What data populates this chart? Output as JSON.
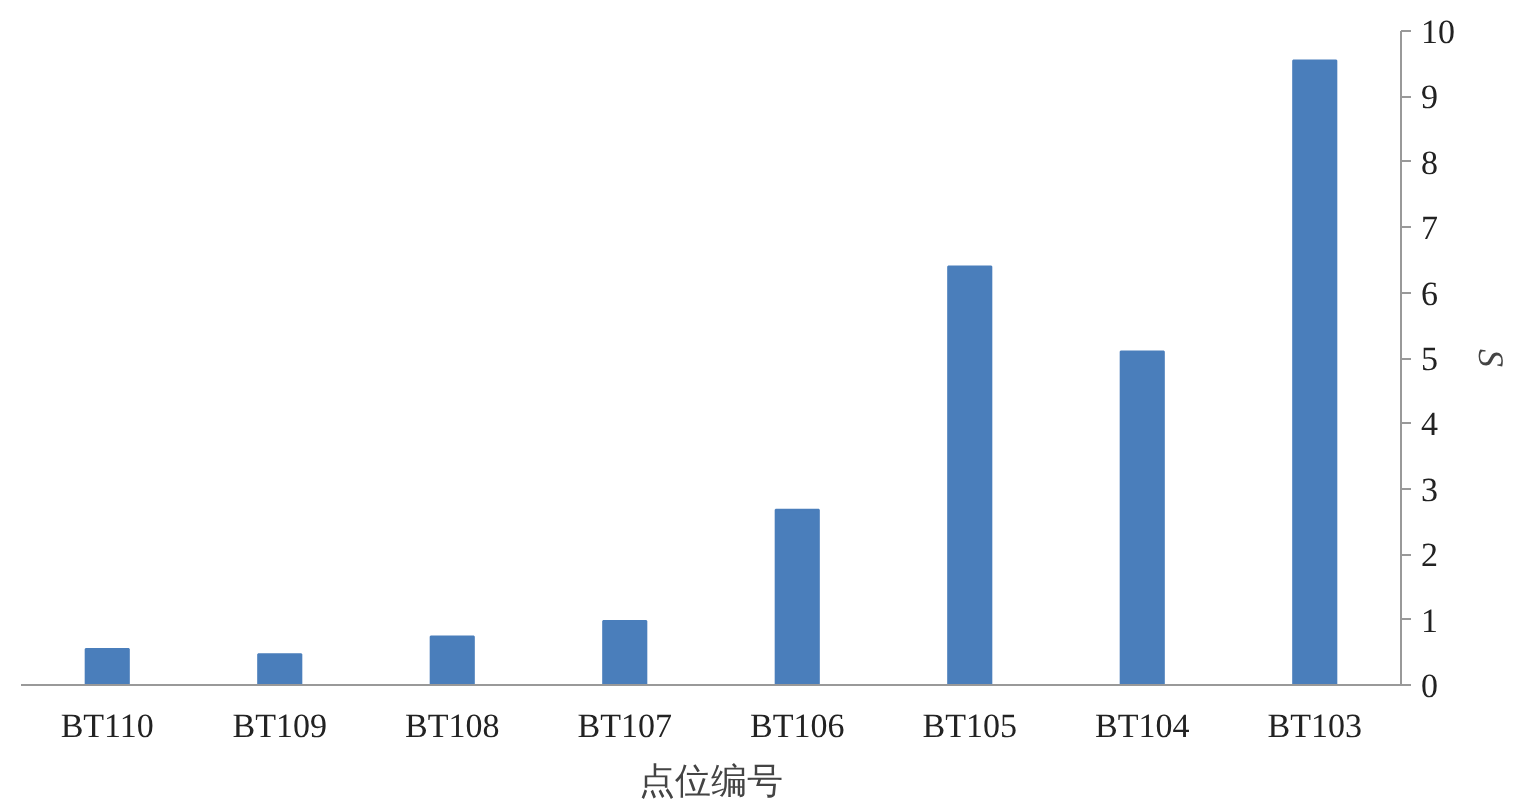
{
  "chart_data": {
    "type": "bar",
    "xlabel": "点位编号",
    "ylabel": "S",
    "categories": [
      "BT110",
      "BT109",
      "BT108",
      "BT107",
      "BT106",
      "BT105",
      "BT104",
      "BT103"
    ],
    "values": [
      0.55,
      0.47,
      0.74,
      0.98,
      2.68,
      6.4,
      5.1,
      9.55
    ],
    "color": "#4a7ebb",
    "ylim": [
      0,
      10
    ],
    "yticks": [
      0,
      1,
      2,
      3,
      4,
      5,
      6,
      7,
      8,
      9,
      10
    ],
    "grid": false
  }
}
